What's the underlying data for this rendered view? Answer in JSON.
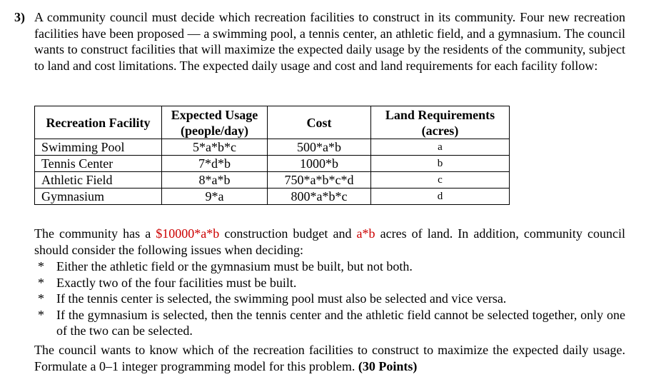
{
  "question": {
    "number": "3)",
    "intro": "A community council must decide which recreation facilities to construct in its community. Four new recreation facilities have been proposed — a swimming pool, a tennis center, an athletic field, and a gymnasium. The council wants to construct facilities that will maximize the expected daily usage by the residents of the community, subject to land and cost limitations. The expected daily usage and cost and land requirements for each facility follow:"
  },
  "table": {
    "headers": {
      "facility": "Recreation Facility",
      "usage_line1": "Expected Usage",
      "usage_line2": "(people/day)",
      "cost": "Cost",
      "land_line1": "Land Requirements",
      "land_line2": "(acres)"
    },
    "rows": [
      {
        "facility": "Swimming Pool",
        "usage": "5*a*b*c",
        "cost": "500*a*b",
        "land": "a"
      },
      {
        "facility": "Tennis Center",
        "usage": "7*d*b",
        "cost": "1000*b",
        "land": "b"
      },
      {
        "facility": "Athletic Field",
        "usage": "8*a*b",
        "cost": "750*a*b*c*d",
        "land": "c"
      },
      {
        "facility": "Gymnasium",
        "usage": "9*a",
        "cost": "800*a*b*c",
        "land": "d"
      }
    ]
  },
  "budget": {
    "pre": "The community has a ",
    "amount": "$10000*a*b",
    "mid": " construction budget and ",
    "acres": "a*b",
    "post": " acres of land. In addition, community council should consider the following issues when deciding:"
  },
  "conditions": {
    "bullet": "*",
    "items": [
      "Either the athletic field or the gymnasium must be built, but not both.",
      "Exactly two of the four facilities must be built.",
      "If the tennis center is selected, the swimming pool must also be selected and vice versa.",
      "If the gymnasium is selected, then the tennis center and the athletic field cannot be selected together, only one of the two can be selected."
    ]
  },
  "closing": {
    "text": "The council wants to know which of the recreation facilities to construct to maximize the expected daily usage. Formulate a 0–1 integer programming model for this problem. ",
    "points": "(30 Points)"
  },
  "colors": {
    "highlight": "#cc0000"
  }
}
